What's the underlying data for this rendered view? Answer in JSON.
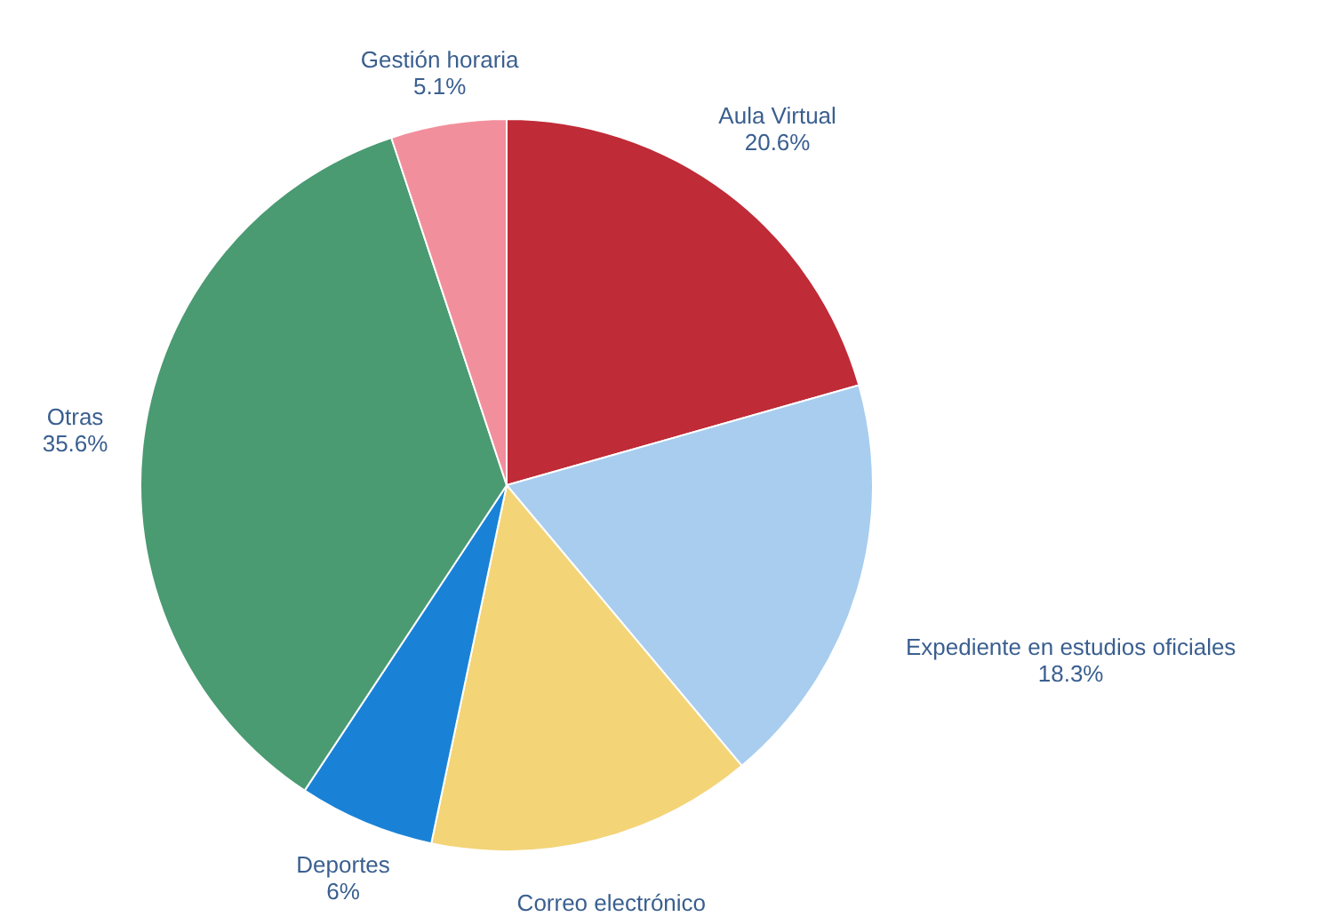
{
  "chart_data": {
    "type": "pie",
    "categories": [
      "Aula Virtual",
      "Expediente en estudios oficiales",
      "Correo electrónico",
      "Deportes",
      "Otras",
      "Gestión horaria"
    ],
    "values": [
      20.6,
      18.3,
      14.4,
      6,
      35.6,
      5.1
    ],
    "value_labels": [
      "20.6%",
      "18.3%",
      null,
      "6%",
      "35.6%",
      "5.1%"
    ],
    "colors": [
      "#bf2b37",
      "#a8cdee",
      "#f3d477",
      "#1a82d6",
      "#4a9a72",
      "#f28f9c"
    ]
  }
}
